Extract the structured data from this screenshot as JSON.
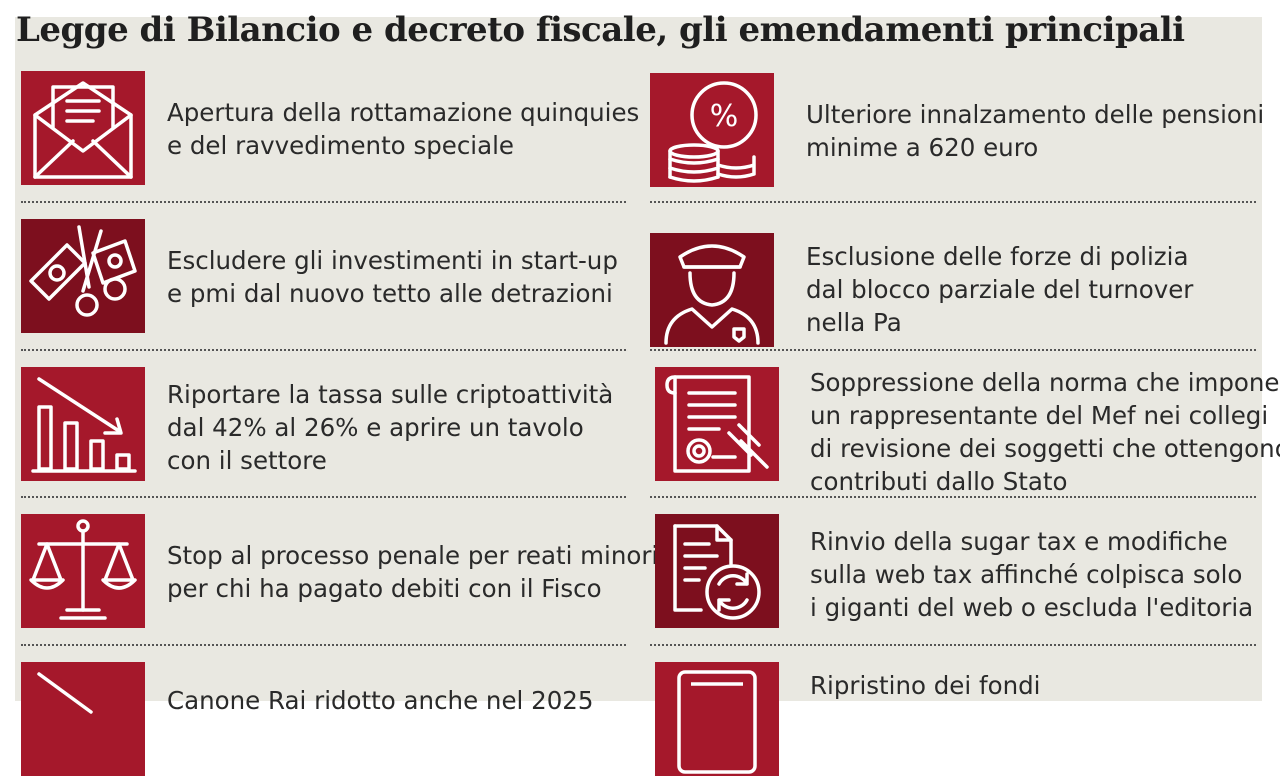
{
  "title": "Legge di Bilancio e decreto fiscale, gli emendamenti principali",
  "colors": {
    "panel": "#e9e8e1",
    "icon_red": "#a5182b",
    "icon_dark_red": "#7d0f1e"
  },
  "items": [
    {
      "icon": "envelope-document-icon",
      "lines": [
        "Apertura della rottamazione quinquies",
        "e del ravvedimento speciale"
      ]
    },
    {
      "icon": "coins-percent-icon",
      "lines": [
        "Ulteriore innalzamento delle pensioni",
        "minime a 620 euro"
      ]
    },
    {
      "icon": "scissors-banknotes-icon",
      "lines": [
        "Escludere gli investimenti in start-up",
        "e pmi dal nuovo tetto alle detrazioni"
      ]
    },
    {
      "icon": "police-officer-icon",
      "lines": [
        "Esclusione delle forze di polizia",
        "dal blocco parziale del turnover",
        "nella Pa"
      ]
    },
    {
      "icon": "declining-chart-icon",
      "lines": [
        "Riportare la tassa sulle criptoattività",
        "dal 42% al 26% e aprire un tavolo",
        "con il settore"
      ]
    },
    {
      "icon": "law-scroll-gavel-icon",
      "lines": [
        "Soppressione della norma che impone",
        "un rappresentante del Mef nei collegi",
        "di revisione dei soggetti che ottengono",
        "contributi dallo Stato"
      ]
    },
    {
      "icon": "scales-of-justice-icon",
      "lines": [
        "Stop al processo penale per reati minori",
        "per chi ha pagato debiti con il Fisco"
      ]
    },
    {
      "icon": "document-refresh-icon",
      "lines": [
        "Rinvio della sugar tax e modifiche",
        "sulla web tax affinché colpisca solo",
        "i giganti del web o escluda l'editoria"
      ]
    },
    {
      "icon": "declining-arrow-icon",
      "lines": [
        "Canone Rai ridotto anche nel 2025"
      ]
    },
    {
      "icon": "tablet-icon",
      "lines": [
        "Ripristino dei fondi"
      ]
    }
  ]
}
